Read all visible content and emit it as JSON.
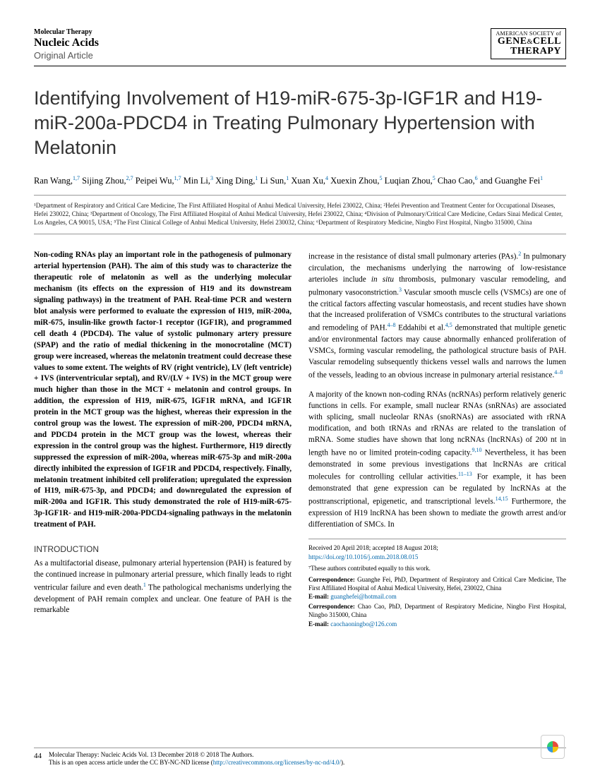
{
  "header": {
    "journal_super": "Molecular Therapy",
    "journal_name": "Nucleic Acids",
    "article_type": "Original Article",
    "society_top": "AMERICAN SOCIETY of",
    "society_line1": "GENE",
    "society_amp": "&",
    "society_line1b": "CELL",
    "society_line2": "THERAPY"
  },
  "title": "Identifying Involvement of H19-miR-675-3p-IGF1R and H19-miR-200a-PDCD4 in Treating Pulmonary Hypertension with Melatonin",
  "authors_html": "Ran Wang,<sup>1,7</sup> Sijing Zhou,<sup>2,7</sup> Peipei Wu,<sup>1,7</sup> Min Li,<sup>3</sup> Xing Ding,<sup>1</sup> Li Sun,<sup>1</sup> Xuan Xu,<sup>4</sup> Xuexin Zhou,<sup>5</sup> Luqian Zhou,<sup>5</sup> Chao Cao,<sup>6</sup> and Guanghe Fei<sup>1</sup>",
  "affiliations": "¹Department of Respiratory and Critical Care Medicine, The First Affiliated Hospital of Anhui Medical University, Hefei 230022, China; ²Hefei Prevention and Treatment Center for Occupational Diseases, Hefei 230022, China; ³Department of Oncology, The First Affiliated Hospital of Anhui Medical University, Hefei 230022, China; ⁴Division of Pulmonary/Critical Care Medicine, Cedars Sinai Medical Center, Los Angeles, CA 90015, USA; ⁵The First Clinical College of Anhui Medical University, Hefei 230032, China; ⁶Department of Respiratory Medicine, Ningbo First Hospital, Ningbo 315000, China",
  "abstract": "Non-coding RNAs play an important role in the pathogenesis of pulmonary arterial hypertension (PAH). The aim of this study was to characterize the therapeutic role of melatonin as well as the underlying molecular mechanism (its effects on the expression of H19 and its downstream signaling pathways) in the treatment of PAH. Real-time PCR and western blot analysis were performed to evaluate the expression of H19, miR-200a, miR-675, insulin-like growth factor-1 receptor (IGF1R), and programmed cell death 4 (PDCD4). The value of systolic pulmonary artery pressure (SPAP) and the ratio of medial thickening in the monocrotaline (MCT) group were increased, whereas the melatonin treatment could decrease these values to some extent. The weights of RV (right ventricle), LV (left ventricle) + IVS (interventricular septal), and RV/(LV + IVS) in the MCT group were much higher than those in the MCT + melatonin and control groups. In addition, the expression of H19, miR-675, IGF1R mRNA, and IGF1R protein in the MCT group was the highest, whereas their expression in the control group was the lowest. The expression of miR-200, PDCD4 mRNA, and PDCD4 protein in the MCT group was the lowest, whereas their expression in the control group was the highest. Furthermore, H19 directly suppressed the expression of miR-200a, whereas miR-675-3p and miR-200a directly inhibited the expression of IGF1R and PDCD4, respectively. Finally, melatonin treatment inhibited cell proliferation; upregulated the expression of H19, miR-675-3p, and PDCD4; and downregulated the expression of miR-200a and IGF1R. This study demonstrated the role of H19-miR-675-3p-IGF1R- and H19-miR-200a-PDCD4-signaling pathways in the melatonin treatment of PAH.",
  "intro_head": "INTRODUCTION",
  "intro_p1_html": "As a multifactorial disease, pulmonary arterial hypertension (PAH) is featured by the continued increase in pulmonary arterial pressure, which finally leads to right ventricular failure and even death.<sup class='ref-sup'>1</sup> The pathological mechanisms underlying the development of PAH remain complex and unclear. One feature of PAH is the remarkable",
  "col2_p1_html": "increase in the resistance of distal small pulmonary arteries (PAs).<sup class='ref-sup'>2</sup> In pulmonary circulation, the mechanisms underlying the narrowing of low-resistance arterioles include <i>in situ</i> thrombosis, pulmonary vascular remodeling, and pulmonary vasoconstriction.<sup class='ref-sup'>3</sup> Vascular smooth muscle cells (VSMCs) are one of the critical factors affecting vascular homeostasis, and recent studies have shown that the increased proliferation of VSMCs contributes to the structural variations and remodeling of PAH.<sup class='ref-sup'>4–8</sup> Eddahibi et al.<sup class='ref-sup'>4,5</sup> demonstrated that multiple genetic and/or environmental factors may cause abnormally enhanced proliferation of VSMCs, forming vascular remodeling, the pathological structure basis of PAH. Vascular remodeling subsequently thickens vessel walls and narrows the lumen of the vessels, leading to an obvious increase in pulmonary arterial resistance.<sup class='ref-sup'>4–8</sup>",
  "col2_p2_html": "A majority of the known non-coding RNAs (ncRNAs) perform relatively generic functions in cells. For example, small nuclear RNAs (snRNAs) are associated with splicing, small nucleolar RNAs (snoRNAs) are associated with rRNA modification, and both tRNAs and rRNAs are related to the translation of mRNA. Some studies have shown that long ncRNAs (lncRNAs) of 200 nt in length have no or limited protein-coding capacity.<sup class='ref-sup'>9,10</sup> Nevertheless, it has been demonstrated in some previous investigations that lncRNAs are critical molecules for controlling cellular activities.<sup class='ref-sup'>11–13</sup> For example, it has been demonstrated that gene expression can be regulated by lncRNAs at the posttranscriptional, epigenetic, and transcriptional levels.<sup class='ref-sup'>14,15</sup> Furthermore, the expression of H19 lncRNA has been shown to mediate the growth arrest and/or differentiation of SMCs. In",
  "received": "Received 20 April 2018; accepted 18 August 2018;",
  "doi": "https://doi.org/10.1016/j.omtn.2018.08.015",
  "contrib_note": "⁷These authors contributed equally to this work.",
  "corr1_label": "Correspondence:",
  "corr1_text": " Guanghe Fei, PhD, Department of Respiratory and Critical Care Medicine, The First Affiliated Hospital of Anhui Medical University, Hefei, 230022, China",
  "email1_label": "E-mail:",
  "email1": "guanghefei@hotmail.com",
  "corr2_label": "Correspondence:",
  "corr2_text": " Chao Cao, PhD, Department of Respiratory Medicine, Ningbo First Hospital, Ningbo 315000, China",
  "email2_label": "E-mail:",
  "email2": "caochaoningbo@126.com",
  "footer": {
    "page": "44",
    "line1": "Molecular Therapy: Nucleic Acids Vol. 13  December 2018 © 2018 The Authors.",
    "line2_a": "This is an open access article under the CC BY-NC-ND license (",
    "line2_link": "http://creativecommons.org/licenses/by-nc-nd/4.0/",
    "line2_b": ")."
  }
}
